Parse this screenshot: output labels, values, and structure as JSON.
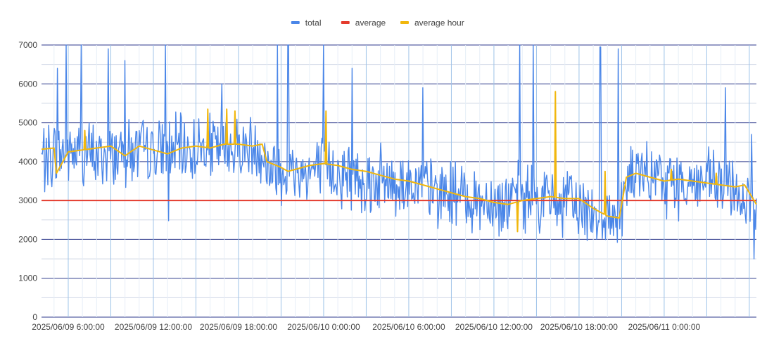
{
  "chart_data": {
    "type": "line",
    "title": "",
    "xlabel": "",
    "ylabel": "",
    "ylim": [
      0,
      7000
    ],
    "y_ticks": [
      0,
      1000,
      2000,
      3000,
      4000,
      5000,
      6000,
      7000
    ],
    "y_tick_labels": [
      "0",
      "1000",
      "2000",
      "3000",
      "4000",
      "5000",
      "6000",
      "7000"
    ],
    "x_range": [
      "2025/06/09 04:07",
      "2025/06/11 06:30"
    ],
    "x_tick_labels": [
      {
        "label": "2025/06/09 6:00:00",
        "at": "2025/06/09 06:00"
      },
      {
        "label": "2025/06/09 12:00:00",
        "at": "2025/06/09 12:00"
      },
      {
        "label": "2025/06/09 18:00:00",
        "at": "2025/06/09 18:00"
      },
      {
        "label": "2025/06/10 0:00:00",
        "at": "2025/06/10 00:00"
      },
      {
        "label": "2025/06/10 6:00:00",
        "at": "2025/06/10 06:00"
      },
      {
        "label": "2025/06/10 12:00:00",
        "at": "2025/06/10 12:00"
      },
      {
        "label": "2025/06/10 18:00:00",
        "at": "2025/06/10 18:00"
      },
      {
        "label": "2025/06/11 0:00:00",
        "at": "2025/06/11 00:00"
      }
    ],
    "grid": true,
    "legend_position": "top",
    "series": [
      {
        "name": "total",
        "color": "#4a86e8",
        "style": "noisy",
        "points": [
          [
            "2025/06/09 04:07",
            4100
          ],
          [
            "2025/06/09 06:00",
            4250
          ],
          [
            "2025/06/09 08:00",
            4150
          ],
          [
            "2025/06/09 10:00",
            4250
          ],
          [
            "2025/06/09 12:00",
            4200
          ],
          [
            "2025/06/09 14:00",
            4300
          ],
          [
            "2025/06/09 16:00",
            4350
          ],
          [
            "2025/06/09 18:00",
            4350
          ],
          [
            "2025/06/09 19:30",
            4400
          ],
          [
            "2025/06/09 20:00",
            3850
          ],
          [
            "2025/06/09 22:00",
            3700
          ],
          [
            "2025/06/10 00:00",
            3800
          ],
          [
            "2025/06/10 02:00",
            3650
          ],
          [
            "2025/06/10 04:00",
            3500
          ],
          [
            "2025/06/10 06:00",
            3450
          ],
          [
            "2025/06/10 08:00",
            3200
          ],
          [
            "2025/06/10 10:00",
            3100
          ],
          [
            "2025/06/10 12:00",
            2950
          ],
          [
            "2025/06/10 14:00",
            3050
          ],
          [
            "2025/06/10 16:00",
            3000
          ],
          [
            "2025/06/10 18:00",
            2850
          ],
          [
            "2025/06/10 20:00",
            2550
          ],
          [
            "2025/06/10 20:50",
            2600
          ],
          [
            "2025/06/10 21:30",
            3600
          ],
          [
            "2025/06/10 23:00",
            3550
          ],
          [
            "2025/06/11 01:00",
            3450
          ],
          [
            "2025/06/11 03:00",
            3450
          ],
          [
            "2025/06/11 05:00",
            3300
          ],
          [
            "2025/06/11 06:30",
            2600
          ]
        ],
        "spikes": [
          [
            "2025/06/09 05:15",
            6400
          ],
          [
            "2025/06/09 05:50",
            7000
          ],
          [
            "2025/06/09 06:55",
            7000
          ],
          [
            "2025/06/09 08:50",
            6900
          ],
          [
            "2025/06/09 10:00",
            6600
          ],
          [
            "2025/06/09 12:50",
            7000
          ],
          [
            "2025/06/09 13:05",
            2480
          ],
          [
            "2025/06/09 16:50",
            6000
          ],
          [
            "2025/06/09 20:45",
            7000
          ],
          [
            "2025/06/09 21:30",
            7000
          ],
          [
            "2025/06/10 00:00",
            7000
          ],
          [
            "2025/06/10 02:00",
            6400
          ],
          [
            "2025/06/10 07:00",
            5900
          ],
          [
            "2025/06/10 13:50",
            7000
          ],
          [
            "2025/06/10 14:45",
            7000
          ],
          [
            "2025/06/10 19:30",
            6950
          ],
          [
            "2025/06/10 20:45",
            6900
          ],
          [
            "2025/06/11 04:20",
            5900
          ],
          [
            "2025/06/11 06:10",
            4700
          ],
          [
            "2025/06/11 06:20",
            1500
          ]
        ]
      },
      {
        "name": "average",
        "color": "#e43b2d",
        "style": "line",
        "points": [
          [
            "2025/06/09 04:07",
            3000
          ],
          [
            "2025/06/11 06:30",
            3000
          ]
        ]
      },
      {
        "name": "average hour",
        "color": "#f1b70d",
        "style": "line",
        "points": [
          [
            "2025/06/09 04:07",
            4320
          ],
          [
            "2025/06/09 05:00",
            4350
          ],
          [
            "2025/06/09 05:10",
            3700
          ],
          [
            "2025/06/09 06:00",
            4250
          ],
          [
            "2025/06/09 07:00",
            4300
          ],
          [
            "2025/06/09 08:00",
            4350
          ],
          [
            "2025/06/09 09:00",
            4400
          ],
          [
            "2025/06/09 10:00",
            4150
          ],
          [
            "2025/06/09 11:00",
            4400
          ],
          [
            "2025/06/09 12:00",
            4300
          ],
          [
            "2025/06/09 13:00",
            4200
          ],
          [
            "2025/06/09 14:00",
            4350
          ],
          [
            "2025/06/09 15:00",
            4400
          ],
          [
            "2025/06/09 16:00",
            4350
          ],
          [
            "2025/06/09 17:00",
            4450
          ],
          [
            "2025/06/09 18:00",
            4450
          ],
          [
            "2025/06/09 19:00",
            4400
          ],
          [
            "2025/06/09 19:40",
            4450
          ],
          [
            "2025/06/09 20:00",
            4000
          ],
          [
            "2025/06/09 21:00",
            3850
          ],
          [
            "2025/06/09 21:30",
            3750
          ],
          [
            "2025/06/09 22:00",
            3800
          ],
          [
            "2025/06/09 23:00",
            3900
          ],
          [
            "2025/06/10 00:00",
            3950
          ],
          [
            "2025/06/10 01:00",
            3900
          ],
          [
            "2025/06/10 02:00",
            3800
          ],
          [
            "2025/06/10 03:00",
            3750
          ],
          [
            "2025/06/10 04:00",
            3650
          ],
          [
            "2025/06/10 05:00",
            3550
          ],
          [
            "2025/06/10 06:00",
            3500
          ],
          [
            "2025/06/10 07:00",
            3400
          ],
          [
            "2025/06/10 08:00",
            3300
          ],
          [
            "2025/06/10 09:00",
            3200
          ],
          [
            "2025/06/10 10:00",
            3100
          ],
          [
            "2025/06/10 11:00",
            3050
          ],
          [
            "2025/06/10 12:00",
            2950
          ],
          [
            "2025/06/10 13:00",
            2900
          ],
          [
            "2025/06/10 14:00",
            3000
          ],
          [
            "2025/06/10 15:00",
            3050
          ],
          [
            "2025/06/10 16:00",
            3100
          ],
          [
            "2025/06/10 17:00",
            3050
          ],
          [
            "2025/06/10 18:00",
            3050
          ],
          [
            "2025/06/10 19:00",
            2800
          ],
          [
            "2025/06/10 20:00",
            2600
          ],
          [
            "2025/06/10 20:50",
            2550
          ],
          [
            "2025/06/10 21:20",
            3600
          ],
          [
            "2025/06/10 22:00",
            3700
          ],
          [
            "2025/06/10 23:00",
            3600
          ],
          [
            "2025/06/11 00:00",
            3500
          ],
          [
            "2025/06/11 01:00",
            3550
          ],
          [
            "2025/06/11 02:00",
            3500
          ],
          [
            "2025/06/11 03:00",
            3450
          ],
          [
            "2025/06/11 04:00",
            3400
          ],
          [
            "2025/06/11 05:00",
            3350
          ],
          [
            "2025/06/11 05:40",
            3400
          ],
          [
            "2025/06/11 06:30",
            2900
          ]
        ],
        "spikes": [
          [
            "2025/06/09 07:10",
            4800
          ],
          [
            "2025/06/09 15:50",
            5350
          ],
          [
            "2025/06/09 17:10",
            5350
          ],
          [
            "2025/06/09 17:45",
            5300
          ],
          [
            "2025/06/10 00:10",
            5300
          ],
          [
            "2025/06/10 13:40",
            2200
          ],
          [
            "2025/06/10 16:20",
            5800
          ],
          [
            "2025/06/10 19:50",
            3750
          ],
          [
            "2025/06/11 00:30",
            3800
          ],
          [
            "2025/06/11 03:40",
            3700
          ]
        ]
      }
    ]
  }
}
